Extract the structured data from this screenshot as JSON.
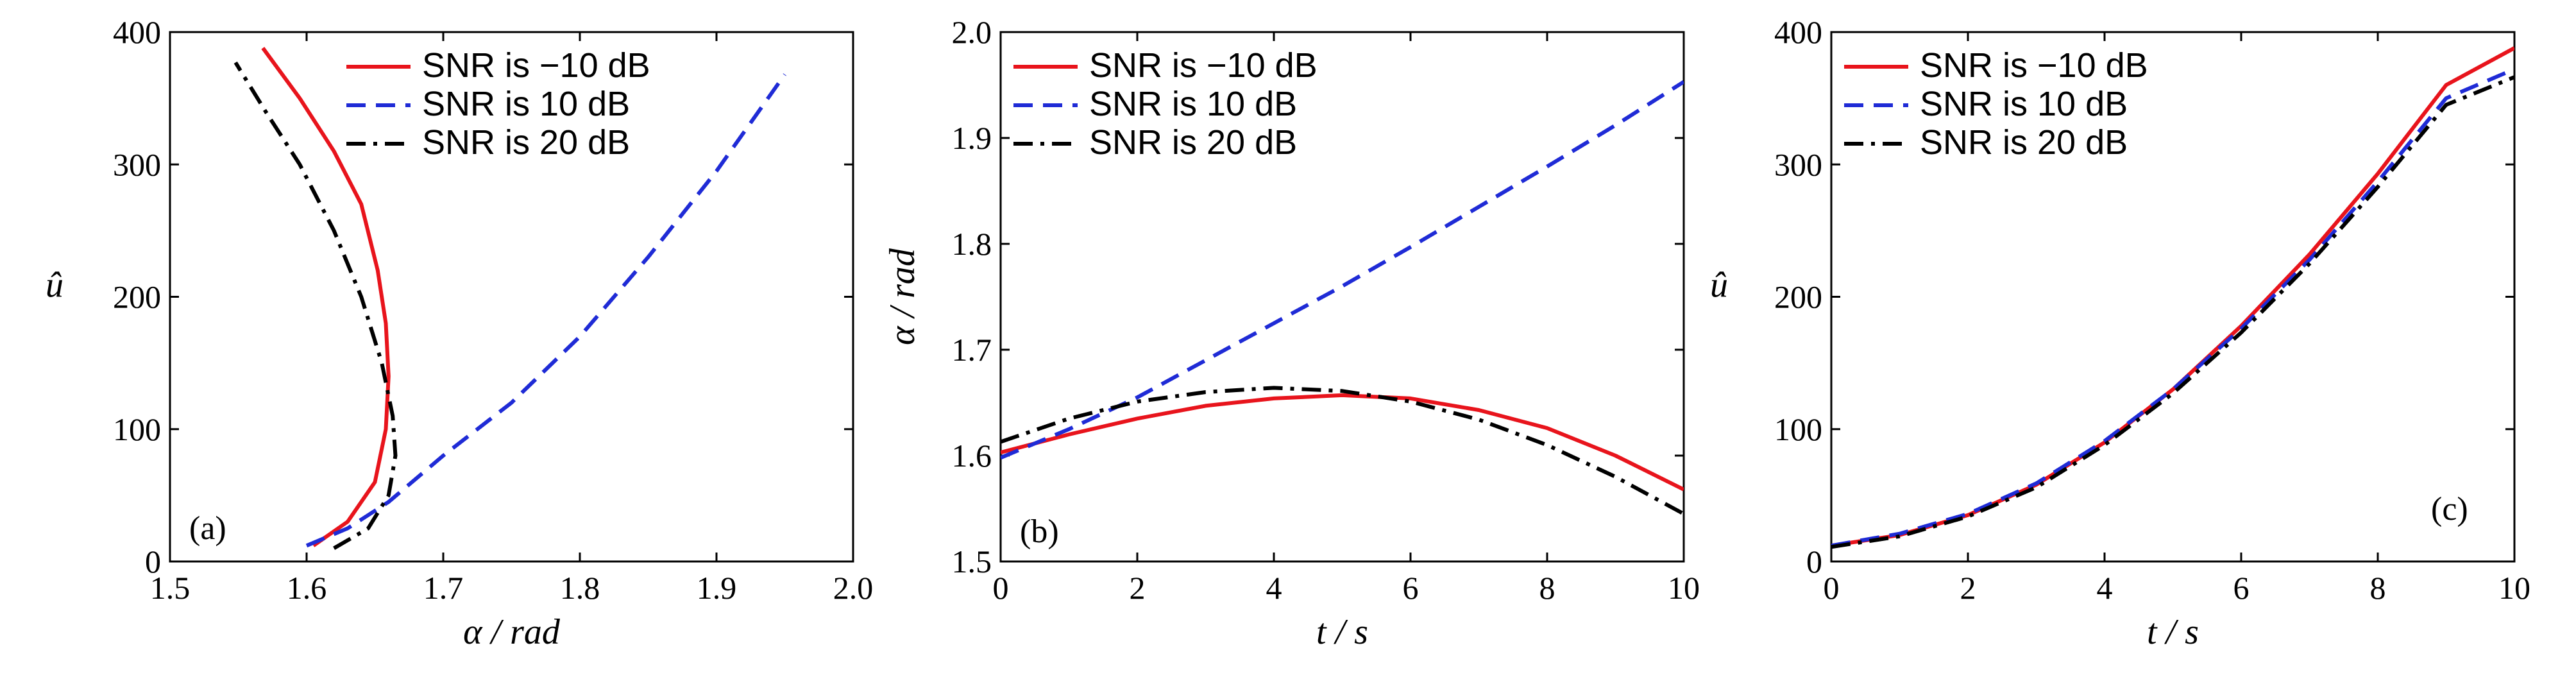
{
  "colors": {
    "red": "#e8141c",
    "blue": "#1f2bd6",
    "black": "#000000"
  },
  "legend_entries": [
    {
      "label": "SNR is −10 dB",
      "color": "#e8141c",
      "dash": "solid"
    },
    {
      "label": "SNR is 10 dB",
      "color": "#1f2bd6",
      "dash": "dashed"
    },
    {
      "label": "SNR is 20 dB",
      "color": "#000000",
      "dash": "dashdot"
    }
  ],
  "chart_data": [
    {
      "type": "line",
      "panel_label": "(a)",
      "xlabel": "α / rad",
      "ylabel": "û",
      "xlim": [
        1.5,
        2.0
      ],
      "ylim": [
        0,
        400
      ],
      "xticks": [
        "1.5",
        "1.6",
        "1.7",
        "1.8",
        "1.9",
        "2.0"
      ],
      "yticks": [
        "0",
        "100",
        "200",
        "300",
        "400"
      ],
      "legend_position": "top-right",
      "series": [
        {
          "name": "SNR is −10 dB",
          "color": "#e8141c",
          "dash": "solid",
          "x": [
            1.605,
            1.63,
            1.65,
            1.658,
            1.66,
            1.658,
            1.652,
            1.64,
            1.62,
            1.595,
            1.568
          ],
          "y": [
            12,
            30,
            60,
            100,
            140,
            180,
            220,
            270,
            310,
            350,
            388
          ]
        },
        {
          "name": "SNR is 10 dB",
          "color": "#1f2bd6",
          "dash": "dashed",
          "x": [
            1.6,
            1.63,
            1.66,
            1.7,
            1.75,
            1.8,
            1.85,
            1.9,
            1.95
          ],
          "y": [
            12,
            25,
            45,
            80,
            120,
            170,
            230,
            295,
            368
          ]
        },
        {
          "name": "SNR is 20 dB",
          "color": "#000000",
          "dash": "dashdot",
          "x": [
            1.62,
            1.645,
            1.66,
            1.665,
            1.663,
            1.655,
            1.64,
            1.62,
            1.595,
            1.57,
            1.548
          ],
          "y": [
            10,
            25,
            50,
            80,
            110,
            150,
            200,
            250,
            300,
            340,
            377
          ]
        }
      ]
    },
    {
      "type": "line",
      "panel_label": "(b)",
      "xlabel": "t / s",
      "ylabel": "α / rad",
      "xlim": [
        0,
        10
      ],
      "ylim": [
        1.5,
        2.0
      ],
      "xticks": [
        "0",
        "2",
        "4",
        "6",
        "8",
        "10"
      ],
      "yticks": [
        "1.5",
        "1.6",
        "1.7",
        "1.8",
        "1.9",
        "2.0"
      ],
      "legend_position": "top-left",
      "series": [
        {
          "name": "SNR is −10 dB",
          "color": "#e8141c",
          "dash": "solid",
          "x": [
            0,
            1,
            2,
            3,
            4,
            5,
            6,
            7,
            8,
            9,
            10
          ],
          "y": [
            1.603,
            1.62,
            1.635,
            1.647,
            1.654,
            1.657,
            1.654,
            1.643,
            1.626,
            1.6,
            1.568
          ]
        },
        {
          "name": "SNR is 10 dB",
          "color": "#1f2bd6",
          "dash": "dashed",
          "x": [
            0,
            1,
            2,
            3,
            4,
            5,
            6,
            7,
            8,
            9,
            10
          ],
          "y": [
            1.598,
            1.625,
            1.655,
            1.69,
            1.725,
            1.76,
            1.797,
            1.835,
            1.873,
            1.912,
            1.953
          ]
        },
        {
          "name": "SNR is 20 dB",
          "color": "#000000",
          "dash": "dashdot",
          "x": [
            0,
            1,
            2,
            3,
            4,
            5,
            6,
            7,
            8,
            9,
            10
          ],
          "y": [
            1.613,
            1.635,
            1.651,
            1.66,
            1.664,
            1.661,
            1.651,
            1.634,
            1.61,
            1.58,
            1.545
          ]
        }
      ]
    },
    {
      "type": "line",
      "panel_label": "(c)",
      "xlabel": "t / s",
      "ylabel": "û",
      "xlim": [
        0,
        10
      ],
      "ylim": [
        0,
        400
      ],
      "xticks": [
        "0",
        "2",
        "4",
        "6",
        "8",
        "10"
      ],
      "yticks": [
        "0",
        "100",
        "200",
        "300",
        "400"
      ],
      "legend_position": "top-left",
      "series": [
        {
          "name": "SNR is −10 dB",
          "color": "#e8141c",
          "dash": "solid",
          "x": [
            0,
            1,
            2,
            3,
            4,
            5,
            6,
            7,
            8,
            9,
            10
          ],
          "y": [
            12,
            20,
            35,
            58,
            90,
            130,
            178,
            232,
            293,
            360,
            388
          ]
        },
        {
          "name": "SNR is 10 dB",
          "color": "#1f2bd6",
          "dash": "dashed",
          "x": [
            0,
            1,
            2,
            3,
            4,
            5,
            6,
            7,
            8,
            9,
            10
          ],
          "y": [
            12,
            21,
            36,
            59,
            91,
            130,
            176,
            228,
            287,
            350,
            372
          ]
        },
        {
          "name": "SNR is 20 dB",
          "color": "#000000",
          "dash": "dashdot",
          "x": [
            0,
            1,
            2,
            3,
            4,
            5,
            6,
            7,
            8,
            9,
            10
          ],
          "y": [
            11,
            19,
            34,
            56,
            88,
            127,
            173,
            225,
            283,
            345,
            366
          ]
        }
      ]
    }
  ]
}
